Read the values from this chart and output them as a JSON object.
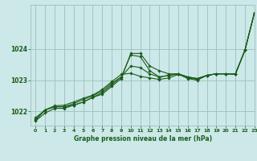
{
  "background_color": "#cce8e8",
  "grid_color": "#9dbfbf",
  "line_color": "#1a5c1a",
  "marker_color": "#1a5c1a",
  "xlabel": "Graphe pression niveau de la mer (hPa)",
  "ylim": [
    1021.55,
    1025.4
  ],
  "xlim": [
    -0.5,
    23
  ],
  "yticks": [
    1022,
    1023,
    1024
  ],
  "xticks": [
    0,
    1,
    2,
    3,
    4,
    5,
    6,
    7,
    8,
    9,
    10,
    11,
    12,
    13,
    14,
    15,
    16,
    17,
    18,
    19,
    20,
    21,
    22,
    23
  ],
  "series": [
    [
      1021.7,
      1021.95,
      1022.1,
      1022.1,
      1022.2,
      1022.3,
      1022.45,
      1022.55,
      1022.8,
      1023.05,
      1023.85,
      1023.85,
      1023.45,
      1023.3,
      1023.2,
      1023.2,
      1023.05,
      1023.0,
      1023.15,
      1023.2,
      1023.2,
      1023.2,
      1023.95,
      1025.15
    ],
    [
      1021.75,
      1022.05,
      1022.15,
      1022.15,
      1022.2,
      1022.3,
      1022.45,
      1022.6,
      1022.85,
      1023.1,
      1023.8,
      1023.75,
      1023.3,
      1023.1,
      1023.15,
      1023.2,
      1023.1,
      1023.05,
      1023.15,
      1023.2,
      1023.2,
      1023.2,
      1023.95,
      1025.15
    ],
    [
      1021.8,
      1022.05,
      1022.15,
      1022.15,
      1022.25,
      1022.38,
      1022.5,
      1022.65,
      1022.9,
      1023.1,
      1023.45,
      1023.4,
      1023.2,
      1023.1,
      1023.15,
      1023.2,
      1023.1,
      1023.05,
      1023.15,
      1023.2,
      1023.2,
      1023.2,
      1023.95,
      1025.15
    ],
    [
      1021.72,
      1022.05,
      1022.18,
      1022.2,
      1022.3,
      1022.42,
      1022.52,
      1022.7,
      1022.95,
      1023.18,
      1023.22,
      1023.12,
      1023.07,
      1023.02,
      1023.07,
      1023.18,
      1023.07,
      1023.02,
      1023.15,
      1023.2,
      1023.2,
      1023.18,
      1023.95,
      1025.15
    ]
  ]
}
